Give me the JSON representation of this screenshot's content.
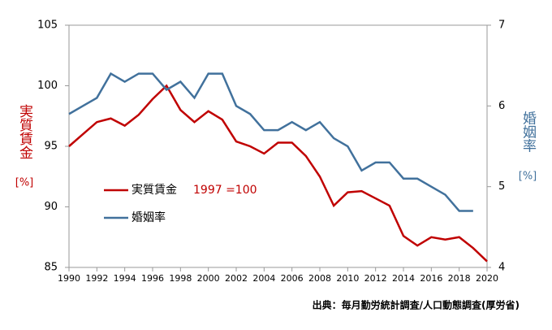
{
  "chart_data": {
    "type": "line",
    "x": [
      1990,
      1991,
      1992,
      1993,
      1994,
      1995,
      1996,
      1997,
      1998,
      1999,
      2000,
      2001,
      2002,
      2003,
      2004,
      2005,
      2006,
      2007,
      2008,
      2009,
      2010,
      2011,
      2012,
      2013,
      2014,
      2015,
      2016,
      2017,
      2018,
      2019,
      2020
    ],
    "series": [
      {
        "name": "実質賃金",
        "color": "#c00000",
        "values": [
          95.0,
          96.0,
          97.0,
          97.3,
          96.7,
          97.6,
          98.9,
          100,
          98.0,
          97.0,
          97.9,
          97.2,
          95.4,
          95.0,
          94.4,
          95.3,
          95.3,
          94.2,
          92.5,
          90.1,
          91.2,
          91.3,
          90.7,
          90.1,
          87.6,
          86.8,
          87.5,
          87.3,
          87.5,
          86.6,
          85.5
        ]
      },
      {
        "name": "婚姻率",
        "color": "#41719c",
        "axis": "y2",
        "values": [
          5.9,
          6.0,
          6.1,
          6.4,
          6.3,
          6.4,
          6.4,
          6.2,
          6.3,
          6.1,
          6.4,
          6.4,
          6.0,
          5.9,
          5.7,
          5.7,
          5.8,
          5.7,
          5.8,
          5.6,
          5.5,
          5.2,
          5.3,
          5.3,
          5.1,
          5.1,
          5.0,
          4.9,
          4.7,
          4.7,
          null
        ]
      }
    ],
    "annotation": "1997 =100",
    "ylabel": "実質賃金",
    "ylabel_unit": "[%]",
    "y2label": "婚姻率",
    "y2label_unit": "[%]",
    "source": "出典：毎月勤労統計調査/人口動態調査(厚労省)",
    "xlim": [
      1990,
      2020
    ],
    "xticks": [
      1990,
      1992,
      1994,
      1996,
      1998,
      2000,
      2002,
      2004,
      2006,
      2008,
      2010,
      2012,
      2014,
      2016,
      2018,
      2020
    ],
    "ylim": [
      85,
      105
    ],
    "yticks": [
      85,
      90,
      95,
      100,
      105
    ],
    "y2lim": [
      4,
      7
    ],
    "y2ticks": [
      4,
      5,
      6,
      7
    ],
    "grid": false
  }
}
